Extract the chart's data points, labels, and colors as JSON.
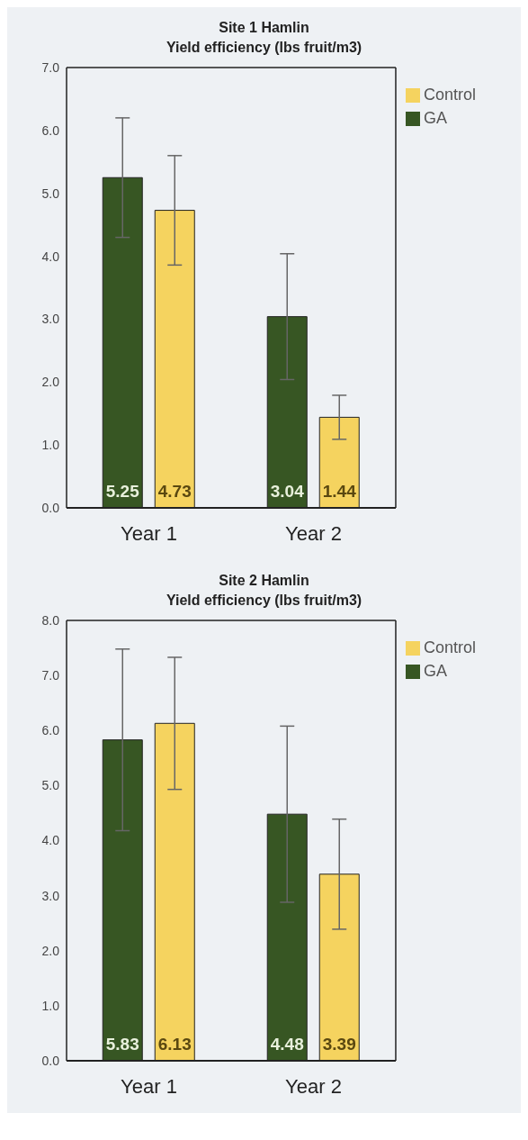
{
  "chart_data": [
    {
      "type": "bar",
      "title": "Site 1 Hamlin",
      "subtitle": "Yield efficiency (lbs fruit/m3)",
      "categories": [
        "Year 1",
        "Year 2"
      ],
      "series": [
        {
          "name": "GA",
          "color": "#375623",
          "values": [
            5.25,
            3.04
          ],
          "errors": [
            0.95,
            1.0
          ]
        },
        {
          "name": "Control",
          "color": "#f5d35f",
          "values": [
            4.73,
            1.44
          ],
          "errors": [
            0.87,
            0.35
          ]
        }
      ],
      "ylim": [
        0,
        7
      ],
      "yticks": [
        {
          "value": 0,
          "label": "0.0"
        },
        {
          "value": 1,
          "label": "1.0"
        },
        {
          "value": 2,
          "label": "2.0"
        },
        {
          "value": 3,
          "label": "3.0"
        },
        {
          "value": 4,
          "label": "4.0"
        },
        {
          "value": 5,
          "label": "5.0"
        },
        {
          "value": 6,
          "label": "6.0"
        },
        {
          "value": 7,
          "label": "7.0"
        }
      ],
      "data_labels": true,
      "legend": "top right",
      "grid": false
    },
    {
      "type": "bar",
      "title": "Site 2 Hamlin",
      "subtitle": "Yield efficiency (lbs fruit/m3)",
      "categories": [
        "Year 1",
        "Year 2"
      ],
      "series": [
        {
          "name": "GA",
          "color": "#375623",
          "values": [
            5.83,
            4.48
          ],
          "errors": [
            1.65,
            1.6
          ]
        },
        {
          "name": "Control",
          "color": "#f5d35f",
          "values": [
            6.13,
            3.39
          ],
          "errors": [
            1.2,
            1.0
          ]
        }
      ],
      "ylim": [
        0,
        8
      ],
      "yticks": [
        {
          "value": 0,
          "label": "0.0"
        },
        {
          "value": 1,
          "label": "1.0"
        },
        {
          "value": 2,
          "label": "2.0"
        },
        {
          "value": 3,
          "label": "3.0"
        },
        {
          "value": 4,
          "label": "4.0"
        },
        {
          "value": 5,
          "label": "5.0"
        },
        {
          "value": 6,
          "label": "6.0"
        },
        {
          "value": 7,
          "label": "7.0"
        },
        {
          "value": 8,
          "label": "8.0"
        }
      ],
      "data_labels": true,
      "legend": "top right",
      "grid": false
    }
  ]
}
